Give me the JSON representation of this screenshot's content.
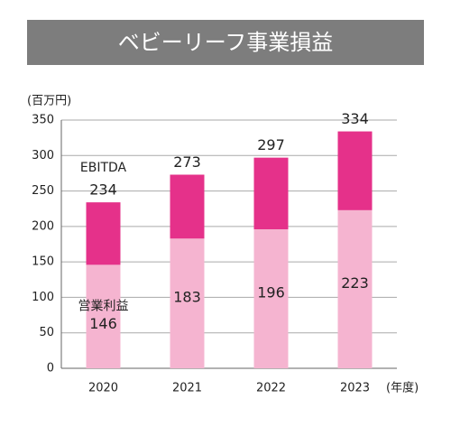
{
  "chart_data": {
    "type": "bar",
    "title": "ベビーリーフ事業損益",
    "y_unit": "(百万円)",
    "x_unit": "(年度)",
    "categories": [
      "2020",
      "2021",
      "2022",
      "2023"
    ],
    "series": [
      {
        "name": "EBITDA",
        "color": "#e5318a",
        "values": [
          234,
          273,
          297,
          334
        ]
      },
      {
        "name": "営業利益",
        "color": "#f5b4d0",
        "values": [
          146,
          183,
          196,
          223
        ]
      }
    ],
    "ylim": [
      0,
      350
    ],
    "yticks": [
      0,
      50,
      100,
      150,
      200,
      250,
      300,
      350
    ],
    "grid": true
  }
}
